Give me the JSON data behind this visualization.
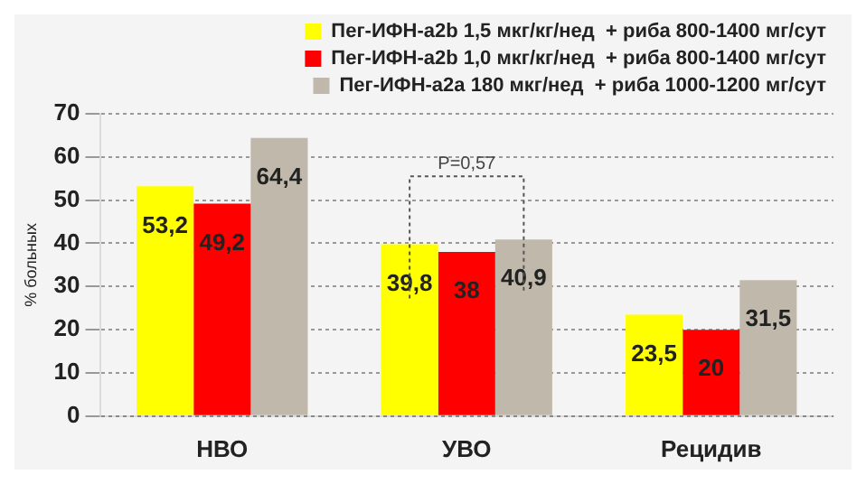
{
  "chart_data": {
    "type": "bar",
    "ylabel": "% больных",
    "categories": [
      "НВО",
      "УВО",
      "Рецидив"
    ],
    "series": [
      {
        "name": "Пег-ИФН-a2b 1,5 мкг/кг/нед  + риба 800-1400 мг/сут",
        "color": "#ffff00",
        "values": [
          53.2,
          39.8,
          23.5
        ],
        "value_labels": [
          "53,2",
          "39,8",
          "23,5"
        ]
      },
      {
        "name": "Пег-ИФН-a2b 1,0 мкг/кг/нед  + риба 800-1400 мг/сут",
        "color": "#ff0000",
        "values": [
          49.2,
          38,
          20
        ],
        "value_labels": [
          "49,2",
          "38",
          "20"
        ]
      },
      {
        "name": "Пег-ИФН-a2a 180 мкг/нед  + риба 1000-1200 мг/сут",
        "color": "#c0b9ab",
        "values": [
          64.4,
          40.9,
          31.5
        ],
        "value_labels": [
          "64,4",
          "40,9",
          "31,5"
        ]
      }
    ],
    "ylim": [
      0,
      70
    ],
    "yticks": [
      0,
      10,
      20,
      30,
      40,
      50,
      60,
      70
    ],
    "grid": "y",
    "legend": "top right",
    "annotations": [
      "P=0,57"
    ]
  }
}
